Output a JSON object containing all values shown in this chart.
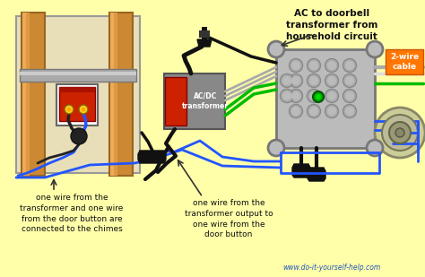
{
  "bg_color": "#FFFFAA",
  "title_text": "AC to doorbell\ntransformer from\nhousehold circuit",
  "label1": "one wire from the\ntransformer and one wire\nfrom the door button are\nconnected to the chimes",
  "label2": "one wire from the\ntransformer output to\none wire from the\ndoor button",
  "label3": "2-wire\ncable",
  "label4": "AC/DC\ntransformer",
  "website": "www.do-it-yourself-help.com",
  "wire_blue": "#2255FF",
  "wire_green": "#00BB00",
  "wire_black": "#111111",
  "wire_gray": "#AAAAAA",
  "wire_white": "#CCCCCC",
  "transformer_gray": "#888888",
  "transformer_red": "#CC2200",
  "chimes_bg": "#E8DFB8",
  "tube_color": "#CC8833",
  "tube_dark": "#996622",
  "junction_box_color": "#BBBBBB",
  "button_color": "#CCCC99",
  "orange_label_bg": "#FF7700",
  "green_dot": "#00AA00",
  "dark_gray": "#666666",
  "black_plug": "#111111"
}
